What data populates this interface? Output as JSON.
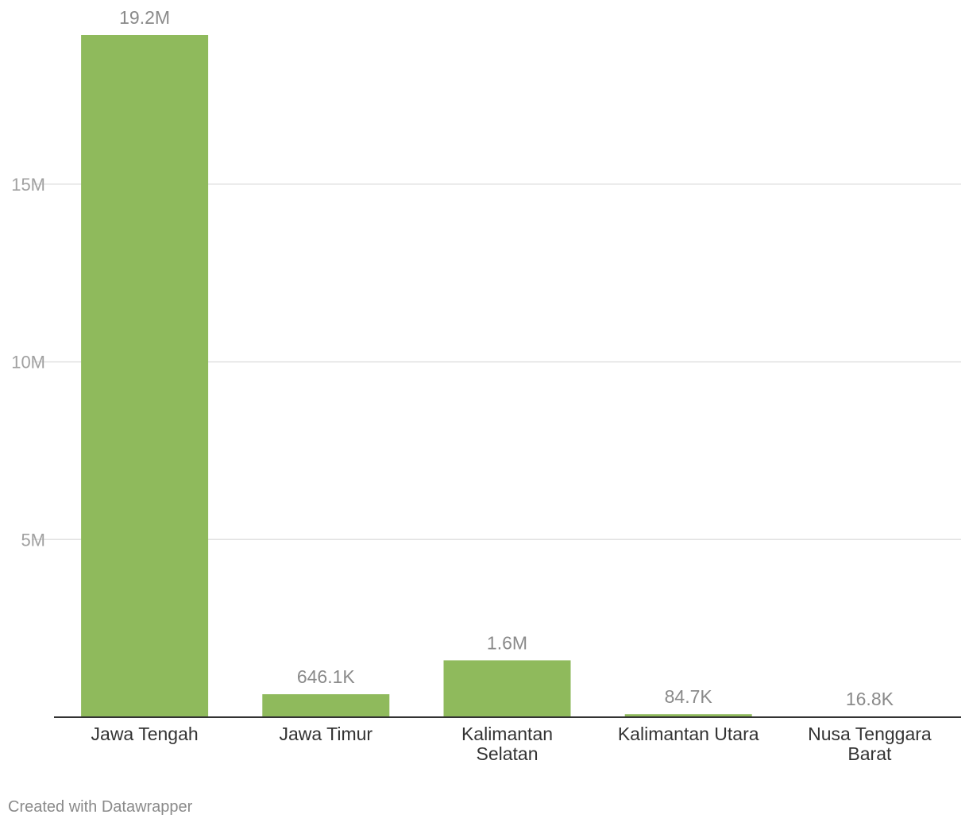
{
  "chart_data": {
    "type": "bar",
    "categories": [
      "Jawa Tengah",
      "Jawa Timur",
      "Kalimantan Selatan",
      "Kalimantan Utara",
      "Nusa Tenggara Barat"
    ],
    "category_lines": [
      [
        "Jawa Tengah"
      ],
      [
        "Jawa Timur"
      ],
      [
        "Kalimantan",
        "Selatan"
      ],
      [
        "Kalimantan Utara"
      ],
      [
        "Nusa Tenggara",
        "Barat"
      ]
    ],
    "values": [
      19200000,
      646100,
      1600000,
      84700,
      16800
    ],
    "value_labels": [
      "19.2M",
      "646.1K",
      "1.6M",
      "84.7K",
      "16.8K"
    ],
    "y_ticks": [
      {
        "value": 5000000,
        "label": "5M"
      },
      {
        "value": 10000000,
        "label": "10M"
      },
      {
        "value": 15000000,
        "label": "15M"
      }
    ],
    "ylim": [
      0,
      19200000
    ],
    "grid": true,
    "bar_color": "#8fba5c",
    "title": "",
    "xlabel": "",
    "ylabel": ""
  },
  "footer": {
    "credit": "Created with Datawrapper"
  }
}
